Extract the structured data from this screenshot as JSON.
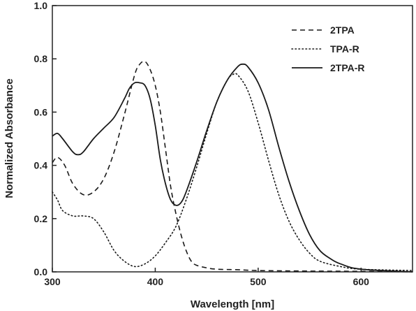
{
  "chart_data": {
    "type": "line",
    "xlabel": "Wavelength [nm]",
    "ylabel": "Normalized Absorbance",
    "xlim": [
      300,
      650
    ],
    "ylim": [
      0.0,
      1.0
    ],
    "xticks": [
      300,
      400,
      500,
      600
    ],
    "yticks": [
      0.0,
      0.2,
      0.4,
      0.6,
      0.8,
      1.0
    ],
    "xtick_labels": [
      "300",
      "400",
      "500",
      "600"
    ],
    "ytick_labels": [
      "0.0",
      "0.2",
      "0.4",
      "0.6",
      "0.8",
      "1.0"
    ],
    "grid": false,
    "legend_position": "top-right",
    "line_color": "#1a1a1a",
    "series": [
      {
        "name": "2TPA",
        "style": "dashed",
        "x": [
          300,
          305,
          312,
          320,
          330,
          340,
          350,
          360,
          370,
          380,
          385,
          390,
          395,
          400,
          405,
          410,
          415,
          420,
          425,
          430,
          435,
          440,
          450,
          460,
          480,
          500,
          550,
          600,
          650
        ],
        "y": [
          0.41,
          0.43,
          0.4,
          0.33,
          0.29,
          0.3,
          0.35,
          0.45,
          0.59,
          0.74,
          0.78,
          0.79,
          0.76,
          0.7,
          0.6,
          0.46,
          0.32,
          0.22,
          0.14,
          0.08,
          0.04,
          0.025,
          0.015,
          0.01,
          0.008,
          0.005,
          0.003,
          0.002,
          0.0
        ]
      },
      {
        "name": "TPA-R",
        "style": "dotted",
        "x": [
          300,
          305,
          310,
          320,
          330,
          340,
          350,
          360,
          370,
          380,
          390,
          400,
          410,
          420,
          430,
          440,
          450,
          460,
          470,
          475,
          480,
          490,
          500,
          510,
          520,
          530,
          540,
          550,
          560,
          580,
          600,
          650
        ],
        "y": [
          0.3,
          0.27,
          0.23,
          0.21,
          0.21,
          0.2,
          0.15,
          0.08,
          0.04,
          0.02,
          0.03,
          0.06,
          0.11,
          0.17,
          0.27,
          0.39,
          0.52,
          0.64,
          0.72,
          0.74,
          0.74,
          0.68,
          0.56,
          0.42,
          0.29,
          0.19,
          0.12,
          0.07,
          0.04,
          0.02,
          0.01,
          0.005
        ]
      },
      {
        "name": "2TPA-R",
        "style": "solid",
        "x": [
          300,
          305,
          310,
          320,
          325,
          330,
          340,
          350,
          360,
          370,
          375,
          380,
          385,
          390,
          395,
          400,
          405,
          410,
          415,
          420,
          425,
          430,
          440,
          450,
          460,
          470,
          480,
          485,
          490,
          500,
          510,
          520,
          530,
          540,
          550,
          560,
          570,
          580,
          600,
          650
        ],
        "y": [
          0.51,
          0.52,
          0.5,
          0.45,
          0.44,
          0.45,
          0.5,
          0.54,
          0.58,
          0.65,
          0.69,
          0.71,
          0.71,
          0.7,
          0.65,
          0.55,
          0.42,
          0.33,
          0.27,
          0.25,
          0.26,
          0.3,
          0.41,
          0.53,
          0.64,
          0.72,
          0.77,
          0.78,
          0.77,
          0.71,
          0.61,
          0.47,
          0.34,
          0.23,
          0.14,
          0.08,
          0.05,
          0.03,
          0.01,
          0.0
        ]
      }
    ]
  }
}
